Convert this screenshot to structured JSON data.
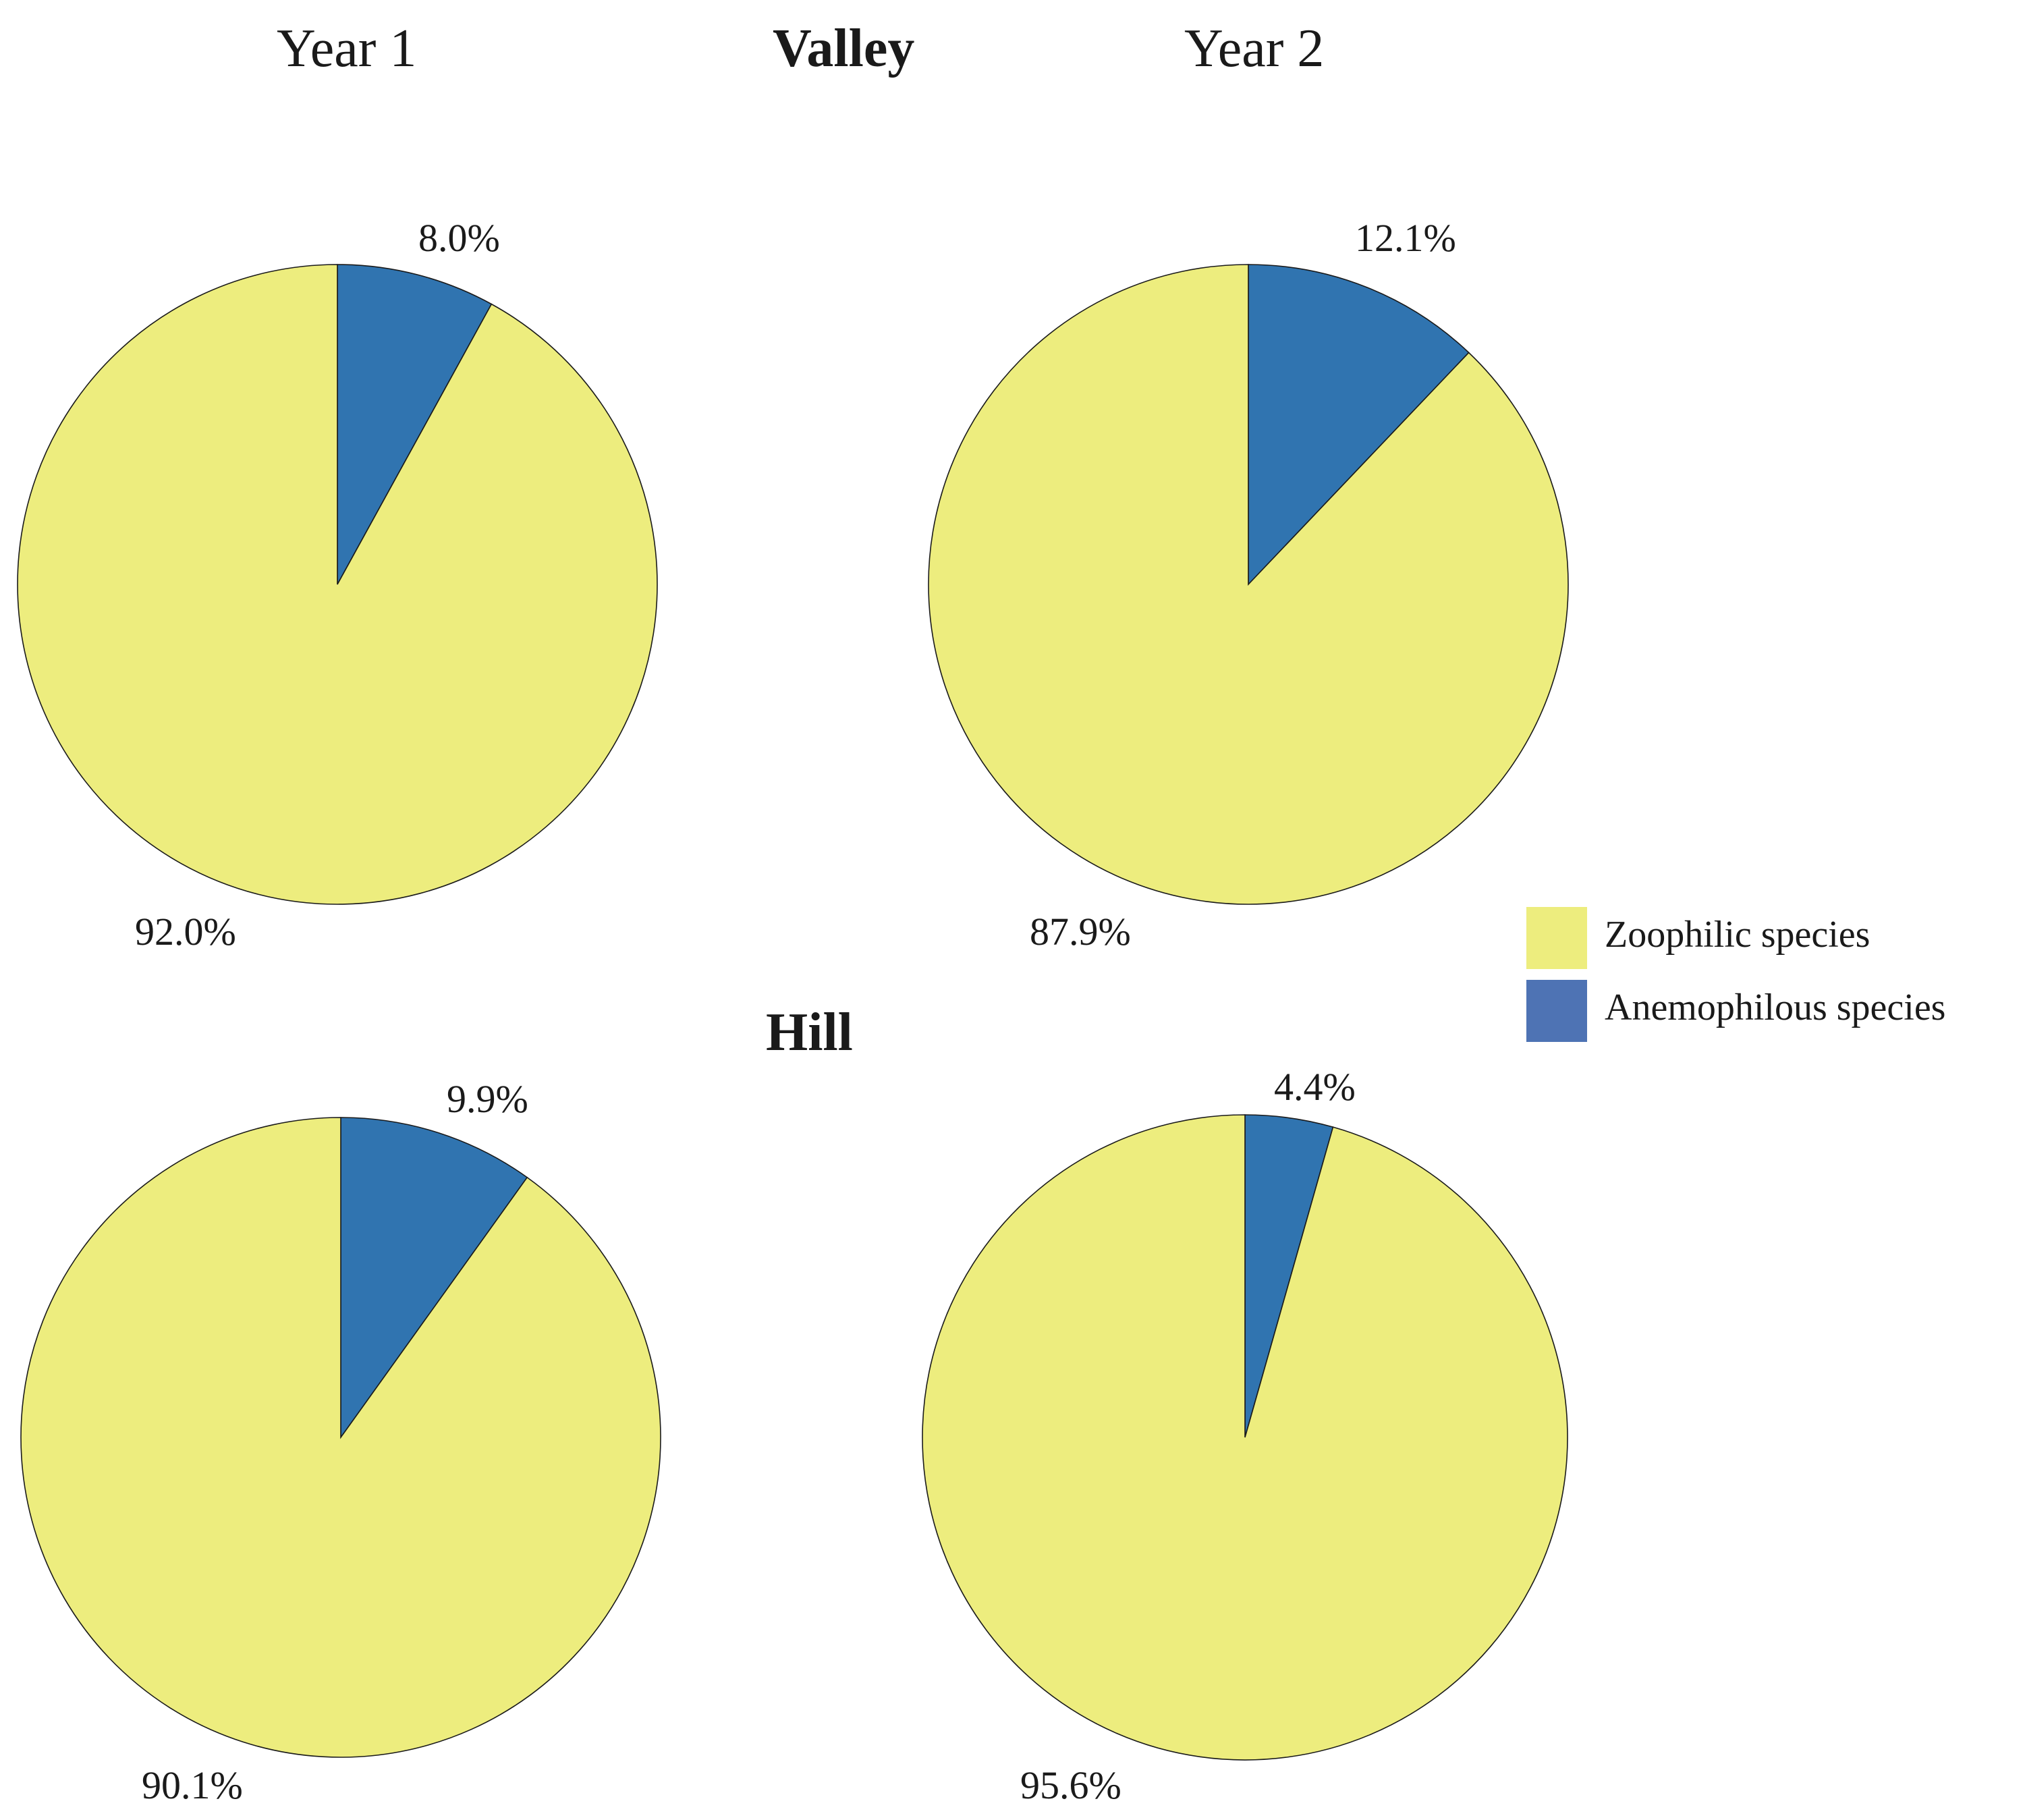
{
  "headings": {
    "year1": "Year 1",
    "year2": "Year 2",
    "valley": "Valley",
    "hill": "Hill"
  },
  "legend": {
    "zoophilic": {
      "label": "Zoophilic species",
      "color": "#eded7e"
    },
    "anemophilous": {
      "label": "Anemophilous species",
      "color": "#4e73b4"
    }
  },
  "colors": {
    "zoophilic": "#eded7e",
    "anemophilous": "#3074b0",
    "outline": "#1a1a1a"
  },
  "chart_data": [
    {
      "type": "pie",
      "group": "Valley",
      "year": "Year 1",
      "slices": [
        {
          "name": "Anemophilous species",
          "value": 8.0,
          "label": "8.0%"
        },
        {
          "name": "Zoophilic species",
          "value": 92.0,
          "label": "92.0%"
        }
      ]
    },
    {
      "type": "pie",
      "group": "Valley",
      "year": "Year 2",
      "slices": [
        {
          "name": "Anemophilous species",
          "value": 12.1,
          "label": "12.1%"
        },
        {
          "name": "Zoophilic species",
          "value": 87.9,
          "label": "87.9%"
        }
      ]
    },
    {
      "type": "pie",
      "group": "Hill",
      "year": "Year 1",
      "slices": [
        {
          "name": "Anemophilous species",
          "value": 9.9,
          "label": "9.9%"
        },
        {
          "name": "Zoophilic species",
          "value": 90.1,
          "label": "90.1%"
        }
      ]
    },
    {
      "type": "pie",
      "group": "Hill",
      "year": "Year 2",
      "slices": [
        {
          "name": "Anemophilous species",
          "value": 4.4,
          "label": "4.4%"
        },
        {
          "name": "Zoophilic species",
          "value": 95.6,
          "label": "95.6%"
        }
      ]
    }
  ]
}
